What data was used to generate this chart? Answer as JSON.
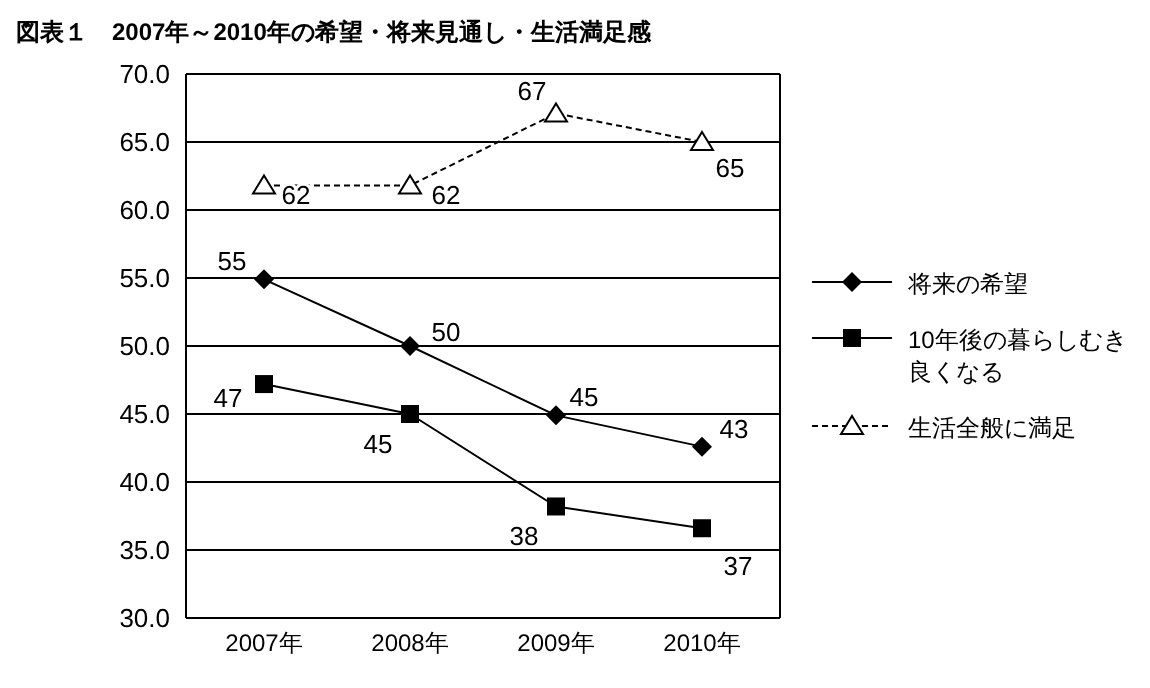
{
  "chart_data": {
    "type": "line",
    "title": "図表１　2007年～2010年の希望・将来見通し・生活満足感",
    "categories": [
      "2007年",
      "2008年",
      "2009年",
      "2010年"
    ],
    "series": [
      {
        "name": "将来の希望",
        "color": "#000000",
        "marker": "diamond",
        "line_style": "solid",
        "values": [
          54.9,
          50.0,
          44.9,
          42.6
        ],
        "value_labels": [
          "55",
          "50",
          "45",
          "43"
        ]
      },
      {
        "name": "10年後の暮らしむき良くなる",
        "color": "#000000",
        "marker": "square",
        "line_style": "solid",
        "values": [
          47.2,
          45.0,
          38.2,
          36.6
        ],
        "value_labels": [
          "47",
          "45",
          "38",
          "37"
        ]
      },
      {
        "name": "生活全般に満足",
        "color": "#000000",
        "marker": "triangle",
        "line_style": "dashed",
        "values": [
          61.8,
          61.8,
          67.1,
          65.0
        ],
        "value_labels": [
          "62",
          "62",
          "67",
          "65"
        ]
      }
    ],
    "ylim": [
      30,
      70
    ],
    "yticks": [
      {
        "value": 30,
        "label": "30.0"
      },
      {
        "value": 35,
        "label": "35.0"
      },
      {
        "value": 40,
        "label": "40.0"
      },
      {
        "value": 45,
        "label": "45.0"
      },
      {
        "value": 50,
        "label": "50.0"
      },
      {
        "value": 55,
        "label": "55.0"
      },
      {
        "value": 60,
        "label": "60.0"
      },
      {
        "value": 65,
        "label": "65.0"
      },
      {
        "value": 70,
        "label": "70.0"
      }
    ],
    "grid": "y",
    "legend": "right"
  }
}
